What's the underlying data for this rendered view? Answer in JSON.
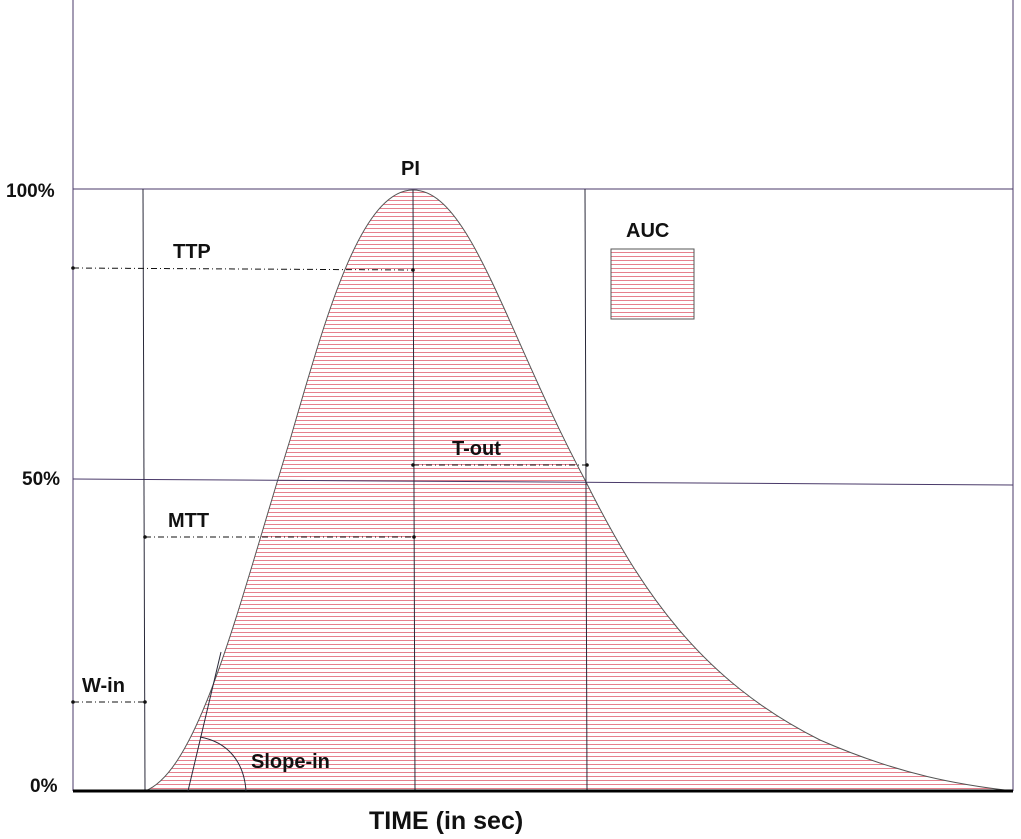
{
  "y_axis": {
    "ticks": [
      "100%",
      "50%",
      "0%"
    ]
  },
  "x_axis": {
    "title": "TIME (in sec)"
  },
  "labels": {
    "peak": "PI",
    "ttp": "TTP",
    "auc": "AUC",
    "t_out": "T-out",
    "mtt": "MTT",
    "w_in": "W-in",
    "slope_in": "Slope-in"
  },
  "colors": {
    "hatch": "#e06070",
    "frame": "#4a3a6a",
    "axis": "#000000"
  }
}
